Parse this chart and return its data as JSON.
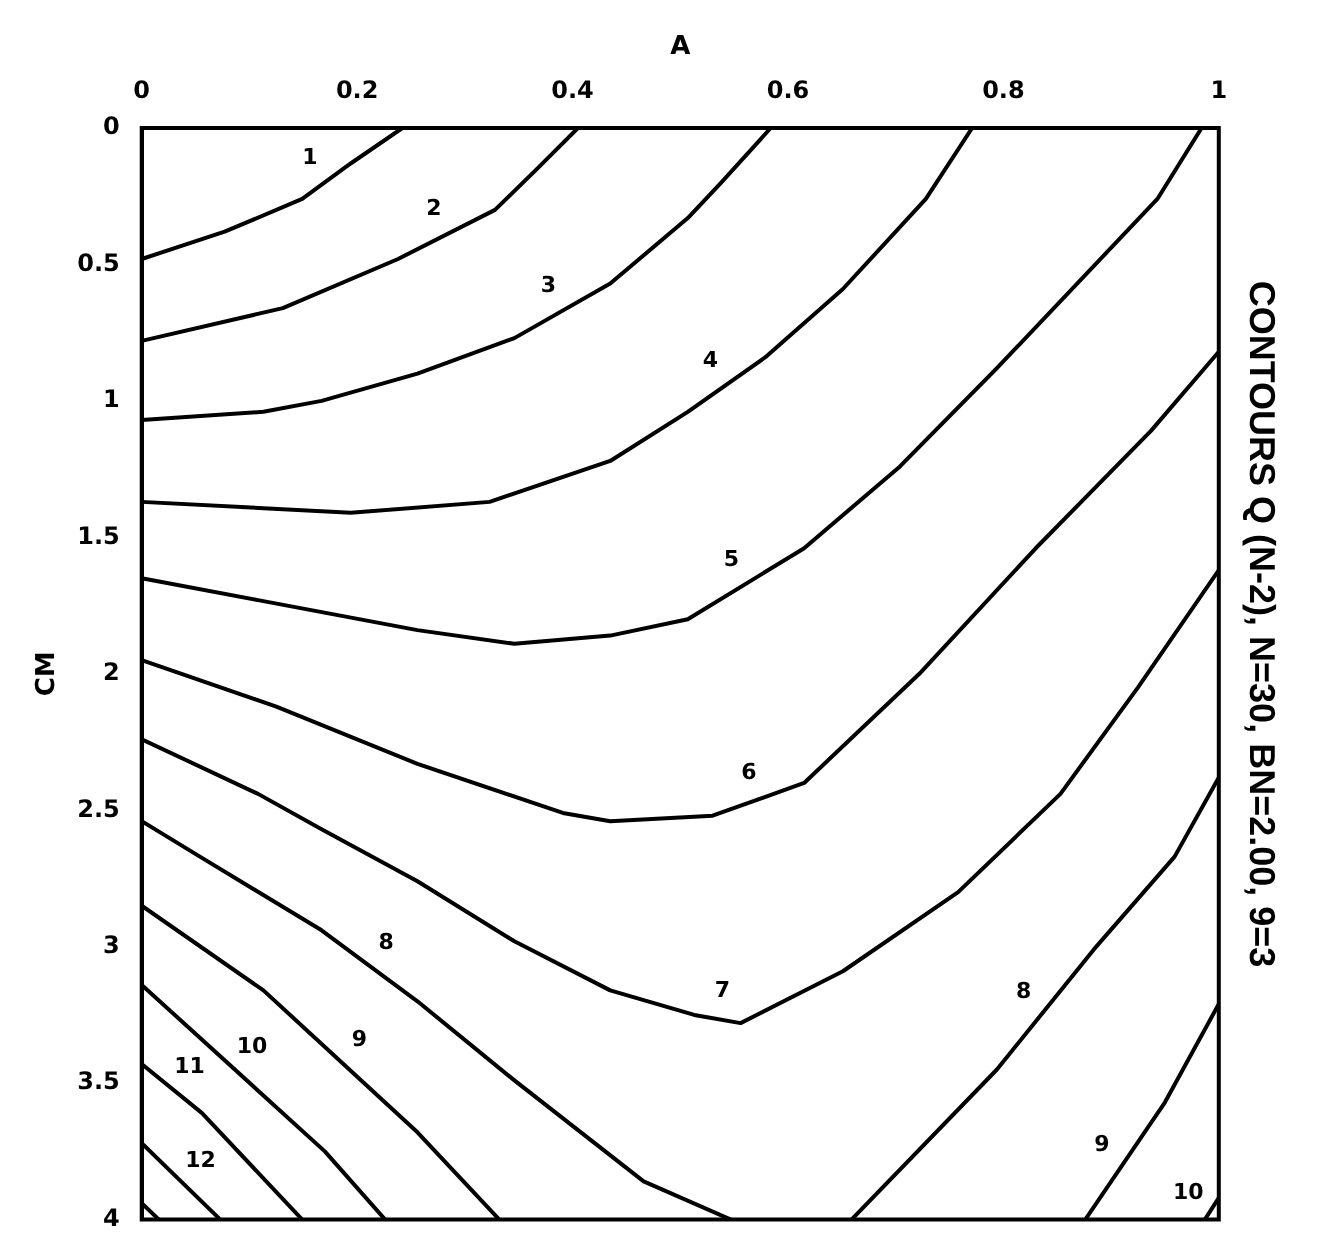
{
  "chart_data": {
    "type": "line",
    "title": "CONTOURS Q (N-2), N=30, BN=2.00, 9=3",
    "xlabel": "A",
    "ylabel": "CM",
    "xlim": [
      0,
      1
    ],
    "xticks": [
      0,
      0.2,
      0.4,
      0.6,
      0.8,
      1
    ],
    "ylim": [
      4,
      0
    ],
    "yticks": [
      0,
      0.5,
      1,
      1.5,
      2,
      2.5,
      3,
      3.5,
      4
    ],
    "grid": false,
    "legend": false,
    "marker": "none",
    "line_style": "solid",
    "series": [
      {
        "name": "1",
        "color": "#000000",
        "x": [
          0.242,
          0.194,
          0.149,
          0.077,
          0
        ],
        "values": [
          0,
          0.13,
          0.26,
          0.38,
          0.48
        ]
      },
      {
        "name": "2",
        "color": "#000000",
        "x": [
          0.405,
          0.367,
          0.328,
          0.238,
          0.131,
          0
        ],
        "values": [
          0,
          0.15,
          0.3,
          0.48,
          0.66,
          0.78
        ]
      },
      {
        "name": "3",
        "color": "#000000",
        "x": [
          0.584,
          0.538,
          0.507,
          0.435,
          0.346,
          0.256,
          0.167,
          0.113,
          0
        ],
        "values": [
          0,
          0.2,
          0.33,
          0.57,
          0.77,
          0.9,
          1.0,
          1.04,
          1.07
        ]
      },
      {
        "name": "4",
        "color": "#000000",
        "x": [
          0.771,
          0.728,
          0.651,
          0.579,
          0.507,
          0.435,
          0.323,
          0.194,
          0
        ],
        "values": [
          0,
          0.26,
          0.59,
          0.84,
          1.04,
          1.22,
          1.37,
          1.41,
          1.37
        ]
      },
      {
        "name": "5",
        "color": "#000000",
        "x": [
          0.984,
          0.943,
          0.794,
          0.704,
          0.615,
          0.507,
          0.435,
          0.346,
          0.256,
          0.108,
          0
        ],
        "values": [
          0,
          0.26,
          0.88,
          1.24,
          1.54,
          1.8,
          1.86,
          1.89,
          1.84,
          1.73,
          1.65
        ]
      },
      {
        "name": "6",
        "color": "#000000",
        "x": [
          1,
          0.937,
          0.83,
          0.722,
          0.615,
          0.53,
          0.435,
          0.391,
          0.256,
          0.125,
          0
        ],
        "values": [
          0.82,
          1.11,
          1.54,
          2.0,
          2.4,
          2.52,
          2.54,
          2.51,
          2.33,
          2.12,
          1.95
        ]
      },
      {
        "name": "7",
        "color": "#000000",
        "x": [
          1,
          0.925,
          0.853,
          0.758,
          0.651,
          0.556,
          0.513,
          0.435,
          0.346,
          0.256,
          0.167,
          0.108,
          0
        ],
        "values": [
          1.62,
          2.05,
          2.44,
          2.8,
          3.09,
          3.28,
          3.25,
          3.16,
          2.98,
          2.76,
          2.57,
          2.44,
          2.24
        ]
      },
      {
        "name": "8",
        "color": "#000000",
        "x": [
          0,
          0.054,
          0.167,
          0.256,
          0.346,
          0.466,
          0.547
        ],
        "values": [
          2.54,
          2.67,
          2.94,
          3.2,
          3.49,
          3.86,
          4
        ]
      },
      {
        "name": "8",
        "color": "#000000",
        "x": [
          0.659,
          0.794,
          0.884,
          0.959,
          1
        ],
        "values": [
          4,
          3.45,
          3.01,
          2.67,
          2.38
        ]
      },
      {
        "name": "9",
        "color": "#000000",
        "x": [
          0,
          0.113,
          0.256,
          0.332
        ],
        "values": [
          2.85,
          3.16,
          3.68,
          4
        ]
      },
      {
        "name": "9",
        "color": "#000000",
        "x": [
          0.876,
          0.95,
          1
        ],
        "values": [
          4,
          3.57,
          3.21
        ]
      },
      {
        "name": "10",
        "color": "#000000",
        "x": [
          0,
          0.17,
          0.226
        ],
        "values": [
          3.14,
          3.75,
          4
        ]
      },
      {
        "name": "10",
        "color": "#000000",
        "x": [
          0.987,
          1
        ],
        "values": [
          4,
          3.92
        ]
      },
      {
        "name": "11",
        "color": "#000000",
        "x": [
          0,
          0.056,
          0.149
        ],
        "values": [
          3.43,
          3.61,
          4
        ]
      },
      {
        "name": "12",
        "color": "#000000",
        "x": [
          0,
          0.073
        ],
        "values": [
          3.72,
          4
        ]
      },
      {
        "color": "#000000",
        "x": [
          0,
          0.016
        ],
        "values": [
          3.94,
          4
        ]
      }
    ]
  }
}
